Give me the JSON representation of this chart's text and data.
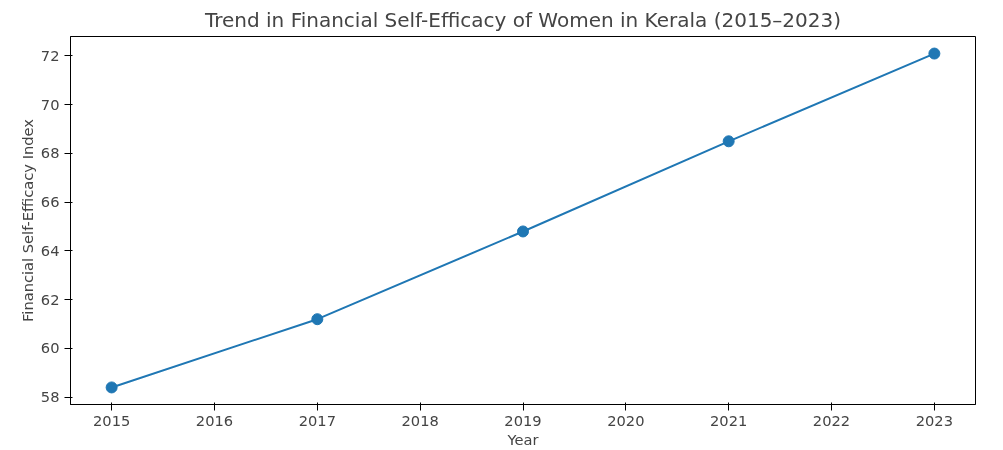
{
  "chart_data": {
    "type": "line",
    "title": "Trend in Financial Self-Efficacy of Women in Kerala (2015–2023)",
    "xlabel": "Year",
    "ylabel": "Financial Self-Efficacy Index",
    "x": [
      2015,
      2017,
      2019,
      2021,
      2023
    ],
    "series": [
      {
        "color": "#1f77b4",
        "values": [
          58.4,
          61.2,
          64.8,
          68.5,
          72.1
        ]
      }
    ],
    "xlim": [
      2014.6,
      2023.4
    ],
    "xticks": [
      2015,
      2016,
      2017,
      2018,
      2019,
      2020,
      2021,
      2022,
      2023
    ],
    "ylim": [
      57.7,
      72.8
    ],
    "yticks": [
      58,
      60,
      62,
      64,
      66,
      68,
      70,
      72
    ],
    "marker": "circle",
    "line_style": "solid",
    "grid": false
  }
}
